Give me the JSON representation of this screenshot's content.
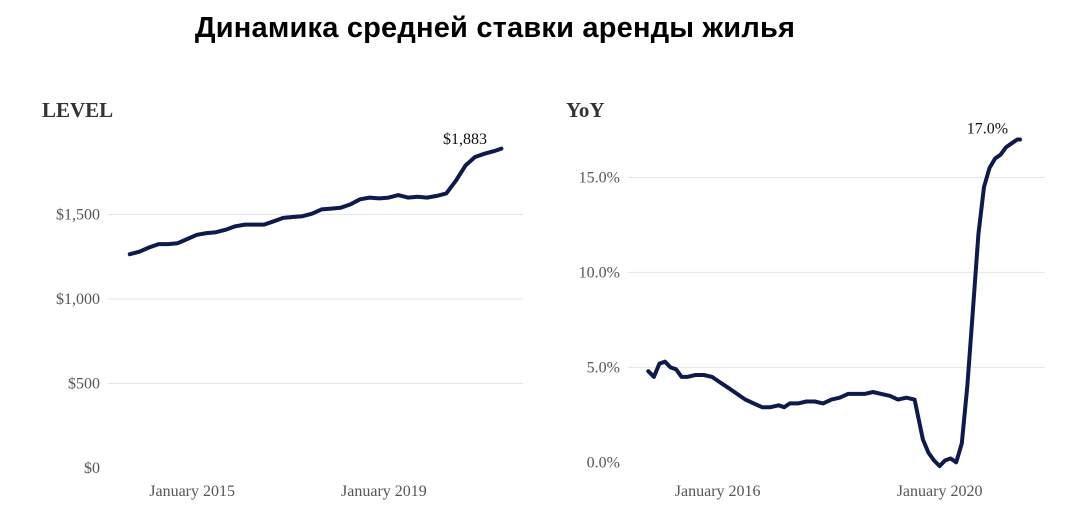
{
  "title": "Динамика средней ставки аренды жилья",
  "chart_data": [
    {
      "type": "line",
      "title": "LEVEL",
      "xlabel": "",
      "ylabel": "",
      "x_ticks": [
        "January 2015",
        "January 2019"
      ],
      "y_ticks": [
        "$0",
        "$500",
        "$1,000",
        "$1,500"
      ],
      "ylim": [
        0,
        2000
      ],
      "xlim": [
        2013.6,
        2021.9
      ],
      "grid": true,
      "annotation": {
        "text": "$1,883",
        "x": 2021.4,
        "y": 1883
      },
      "series": [
        {
          "color": "#0e1a4f",
          "x": [
            2013.7,
            2013.9,
            2014.1,
            2014.3,
            2014.5,
            2014.7,
            2014.9,
            2015.1,
            2015.3,
            2015.5,
            2015.7,
            2015.9,
            2016.1,
            2016.3,
            2016.5,
            2016.7,
            2016.9,
            2017.1,
            2017.3,
            2017.5,
            2017.7,
            2017.9,
            2018.1,
            2018.3,
            2018.5,
            2018.7,
            2018.9,
            2019.1,
            2019.3,
            2019.5,
            2019.7,
            2019.9,
            2020.1,
            2020.3,
            2020.5,
            2020.7,
            2020.9,
            2021.1,
            2021.3,
            2021.45
          ],
          "y": [
            1265,
            1280,
            1305,
            1325,
            1325,
            1330,
            1355,
            1380,
            1390,
            1395,
            1410,
            1430,
            1440,
            1440,
            1440,
            1460,
            1480,
            1485,
            1490,
            1505,
            1530,
            1535,
            1540,
            1560,
            1590,
            1600,
            1595,
            1600,
            1615,
            1600,
            1605,
            1600,
            1610,
            1625,
            1700,
            1790,
            1840,
            1860,
            1875,
            1890
          ]
        }
      ]
    },
    {
      "type": "line",
      "title": "YoY",
      "xlabel": "",
      "ylabel": "",
      "x_ticks": [
        "January 2016",
        "January 2020"
      ],
      "y_ticks": [
        "0.0%",
        "5.0%",
        "10.0%",
        "15.0%"
      ],
      "ylim": [
        -0.3,
        17.5
      ],
      "xlim": [
        2014.6,
        2021.9
      ],
      "grid": true,
      "annotation": {
        "text": "17.0%",
        "x": 2021.45,
        "y": 17.0
      },
      "series": [
        {
          "color": "#0e1a4f",
          "x": [
            2014.75,
            2014.85,
            2014.95,
            2015.05,
            2015.15,
            2015.25,
            2015.35,
            2015.45,
            2015.6,
            2015.75,
            2015.9,
            2016.05,
            2016.2,
            2016.35,
            2016.5,
            2016.65,
            2016.8,
            2016.95,
            2017.1,
            2017.2,
            2017.3,
            2017.45,
            2017.6,
            2017.75,
            2017.9,
            2018.05,
            2018.2,
            2018.35,
            2018.5,
            2018.65,
            2018.8,
            2018.95,
            2019.1,
            2019.25,
            2019.4,
            2019.55,
            2019.7,
            2019.8,
            2019.9,
            2020.0,
            2020.1,
            2020.2,
            2020.3,
            2020.4,
            2020.5,
            2020.6,
            2020.7,
            2020.8,
            2020.9,
            2021.0,
            2021.1,
            2021.2,
            2021.3,
            2021.4,
            2021.45
          ],
          "y": [
            4.8,
            4.5,
            5.2,
            5.3,
            5.0,
            4.9,
            4.5,
            4.5,
            4.6,
            4.6,
            4.5,
            4.2,
            3.9,
            3.6,
            3.3,
            3.1,
            2.9,
            2.9,
            3.0,
            2.9,
            3.1,
            3.1,
            3.2,
            3.2,
            3.1,
            3.3,
            3.4,
            3.6,
            3.6,
            3.6,
            3.7,
            3.6,
            3.5,
            3.3,
            3.4,
            3.3,
            1.2,
            0.5,
            0.1,
            -0.2,
            0.1,
            0.2,
            0.0,
            1.0,
            4.0,
            8.0,
            12.0,
            14.5,
            15.5,
            16.0,
            16.2,
            16.6,
            16.8,
            17.0,
            17.0
          ]
        }
      ]
    }
  ]
}
